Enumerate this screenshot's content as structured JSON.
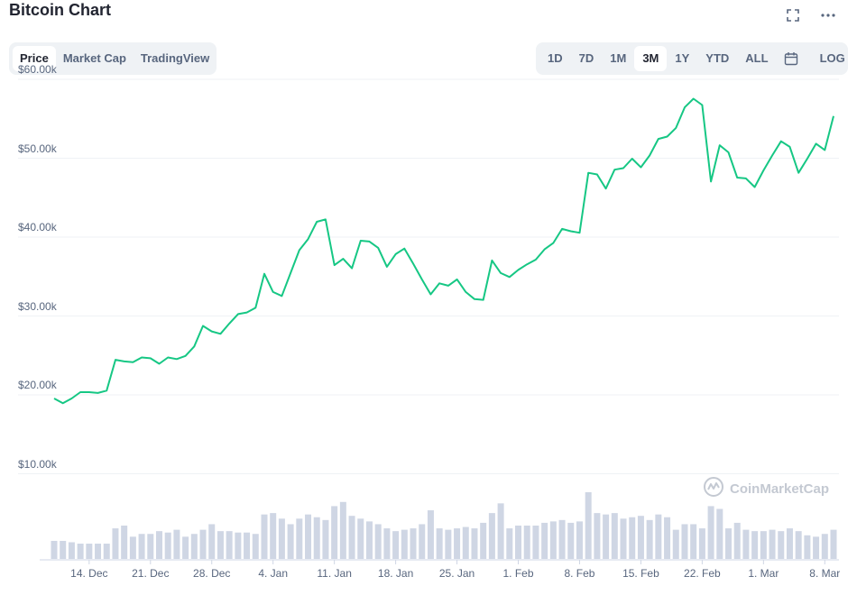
{
  "header": {
    "title": "Bitcoin Chart",
    "fullscreen_icon": "fullscreen-icon",
    "more_icon": "more-horizontal-icon"
  },
  "view_tabs": [
    {
      "label": "Price",
      "active": true
    },
    {
      "label": "Market Cap",
      "active": false
    },
    {
      "label": "TradingView",
      "active": false
    }
  ],
  "range_tabs": [
    {
      "label": "1D",
      "active": false
    },
    {
      "label": "7D",
      "active": false
    },
    {
      "label": "1M",
      "active": false
    },
    {
      "label": "3M",
      "active": true
    },
    {
      "label": "1Y",
      "active": false
    },
    {
      "label": "YTD",
      "active": false
    },
    {
      "label": "ALL",
      "active": false
    }
  ],
  "calendar_icon": "calendar-icon",
  "log_label": "LOG",
  "watermark": {
    "text": "CoinMarketCap",
    "icon": "coinmarketcap-logo-icon"
  },
  "colors": {
    "line": "#16c784",
    "volume": "#cfd6e4",
    "grid": "#eff2f5",
    "accent_text": "#58667e"
  },
  "chart_data": {
    "type": "line",
    "ylim": [
      0,
      60000
    ],
    "y_ticks": [
      10000,
      20000,
      30000,
      40000,
      50000,
      60000
    ],
    "y_tick_labels": [
      "$10.00k",
      "$20.00k",
      "$30.00k",
      "$40.00k",
      "$50.00k",
      "$60.00k"
    ],
    "x_tick_labels": [
      "14. Dec",
      "21. Dec",
      "28. Dec",
      "4. Jan",
      "11. Jan",
      "18. Jan",
      "25. Jan",
      "1. Feb",
      "8. Feb",
      "15. Feb",
      "22. Feb",
      "1. Mar",
      "8. Mar"
    ],
    "x_tick_day_index": [
      4,
      11,
      18,
      25,
      32,
      39,
      46,
      53,
      60,
      67,
      74,
      81,
      88
    ],
    "grid": true,
    "series": [
      {
        "values": [
          18400,
          17800,
          18400,
          19200,
          19200,
          19100,
          19400,
          23300,
          23100,
          23000,
          23600,
          23500,
          22800,
          23600,
          23400,
          23800,
          25000,
          27600,
          26900,
          26600,
          27900,
          29100,
          29300,
          29900,
          34200,
          31900,
          31400,
          34300,
          37200,
          38600,
          40800,
          41100,
          35300,
          36100,
          34900,
          38400,
          38300,
          37500,
          35100,
          36700,
          37400,
          35500,
          33500,
          31600,
          33000,
          32700,
          33500,
          31900,
          31000,
          30900,
          35900,
          34300,
          33800,
          34700,
          35400,
          36000,
          37300,
          38100,
          39900,
          39600,
          39400,
          47000,
          46800,
          45000,
          47400,
          47600,
          48800,
          47700,
          49200,
          51300,
          51600,
          52700,
          55300,
          56400,
          55600,
          45900,
          50500,
          49600,
          46400,
          46300,
          45200,
          47300,
          49200,
          51000,
          50300,
          47000,
          48800,
          50700,
          49900,
          54200
        ]
      }
    ],
    "volume": [
      13,
      13,
      12,
      11,
      11,
      11,
      11,
      22,
      24,
      16,
      18,
      18,
      20,
      19,
      21,
      16,
      18,
      21,
      25,
      20,
      20,
      19,
      19,
      18,
      32,
      33,
      29,
      25,
      29,
      32,
      30,
      28,
      38,
      41,
      31,
      29,
      27,
      25,
      22,
      20,
      21,
      22,
      25,
      35,
      22,
      21,
      22,
      23,
      22,
      26,
      33,
      40,
      22,
      24,
      24,
      24,
      26,
      27,
      28,
      26,
      27,
      48,
      33,
      32,
      33,
      29,
      30,
      31,
      28,
      32,
      30,
      21,
      25,
      25,
      22,
      38,
      36,
      22,
      26,
      21,
      20,
      20,
      21,
      20,
      22,
      20,
      17,
      16,
      18,
      21
    ]
  }
}
